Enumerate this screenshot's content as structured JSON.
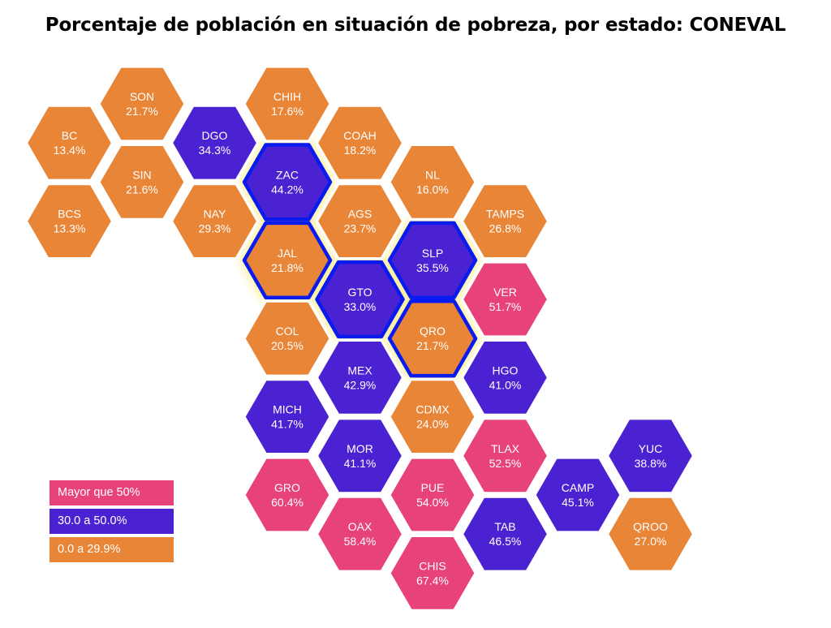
{
  "title": "Porcentaje de población en situación de pobreza, por estado: CONEVAL",
  "colors": {
    "high": "#E8427A",
    "mid": "#4B22D1",
    "low": "#E98537",
    "highlight_outline": "#0A1BF0",
    "highlight_glow": "#F5E663"
  },
  "legend": [
    {
      "label": "Mayor que 50%",
      "category": "high"
    },
    {
      "label": "30.0 a 50.0%",
      "category": "mid"
    },
    {
      "label": "0.0 a 29.9%",
      "category": "low"
    }
  ],
  "chart_data": {
    "type": "hex-tile-map",
    "unit": "%",
    "states": [
      {
        "code": "SON",
        "value": 21.7,
        "category": "low",
        "col": 2,
        "row": 0
      },
      {
        "code": "BC",
        "value": 13.4,
        "category": "low",
        "col": 1,
        "row": 1
      },
      {
        "code": "SIN",
        "value": 21.6,
        "category": "low",
        "col": 2,
        "row": 2
      },
      {
        "code": "BCS",
        "value": 13.3,
        "category": "low",
        "col": 1,
        "row": 3
      },
      {
        "code": "CHIH",
        "value": 17.6,
        "category": "low",
        "col": 4,
        "row": 0
      },
      {
        "code": "DGO",
        "value": 34.3,
        "category": "mid",
        "col": 3,
        "row": 1
      },
      {
        "code": "NAY",
        "value": 29.3,
        "category": "low",
        "col": 3,
        "row": 3
      },
      {
        "code": "ZAC",
        "value": 44.2,
        "category": "mid",
        "col": 4,
        "row": 2,
        "highlighted": true
      },
      {
        "code": "JAL",
        "value": 21.8,
        "category": "low",
        "col": 4,
        "row": 4,
        "highlighted": true
      },
      {
        "code": "COAH",
        "value": 18.2,
        "category": "low",
        "col": 5,
        "row": 1
      },
      {
        "code": "AGS",
        "value": 23.7,
        "category": "low",
        "col": 5,
        "row": 3
      },
      {
        "code": "GTO",
        "value": 33.0,
        "category": "mid",
        "col": 5,
        "row": 5,
        "highlighted": true
      },
      {
        "code": "COL",
        "value": 20.5,
        "category": "low",
        "col": 4,
        "row": 6
      },
      {
        "code": "NL",
        "value": 16.0,
        "category": "low",
        "col": 6,
        "row": 2
      },
      {
        "code": "SLP",
        "value": 35.5,
        "category": "mid",
        "col": 6,
        "row": 4,
        "highlighted": true
      },
      {
        "code": "QRO",
        "value": 21.7,
        "category": "low",
        "col": 6,
        "row": 6,
        "highlighted": true
      },
      {
        "code": "MEX",
        "value": 42.9,
        "category": "mid",
        "col": 5,
        "row": 7
      },
      {
        "code": "MICH",
        "value": 41.7,
        "category": "mid",
        "col": 4,
        "row": 8
      },
      {
        "code": "CDMX",
        "value": 24.0,
        "category": "low",
        "col": 6,
        "row": 8
      },
      {
        "code": "MOR",
        "value": 41.1,
        "category": "mid",
        "col": 5,
        "row": 9
      },
      {
        "code": "GRO",
        "value": 60.4,
        "category": "high",
        "col": 4,
        "row": 10
      },
      {
        "code": "OAX",
        "value": 58.4,
        "category": "high",
        "col": 5,
        "row": 11
      },
      {
        "code": "PUE",
        "value": 54.0,
        "category": "high",
        "col": 6,
        "row": 10
      },
      {
        "code": "CHIS",
        "value": 67.4,
        "category": "high",
        "col": 6,
        "row": 12
      },
      {
        "code": "TAMPS",
        "value": 26.8,
        "category": "low",
        "col": 7,
        "row": 3
      },
      {
        "code": "VER",
        "value": 51.7,
        "category": "high",
        "col": 7,
        "row": 5
      },
      {
        "code": "HGO",
        "value": 41.0,
        "category": "mid",
        "col": 7,
        "row": 7
      },
      {
        "code": "TLAX",
        "value": 52.5,
        "category": "high",
        "col": 7,
        "row": 9
      },
      {
        "code": "TAB",
        "value": 46.5,
        "category": "mid",
        "col": 7,
        "row": 11
      },
      {
        "code": "CAMP",
        "value": 45.1,
        "category": "mid",
        "col": 8,
        "row": 10
      },
      {
        "code": "YUC",
        "value": 38.8,
        "category": "mid",
        "col": 9,
        "row": 9
      },
      {
        "code": "QROO",
        "value": 27.0,
        "category": "low",
        "col": 9,
        "row": 11
      }
    ]
  }
}
